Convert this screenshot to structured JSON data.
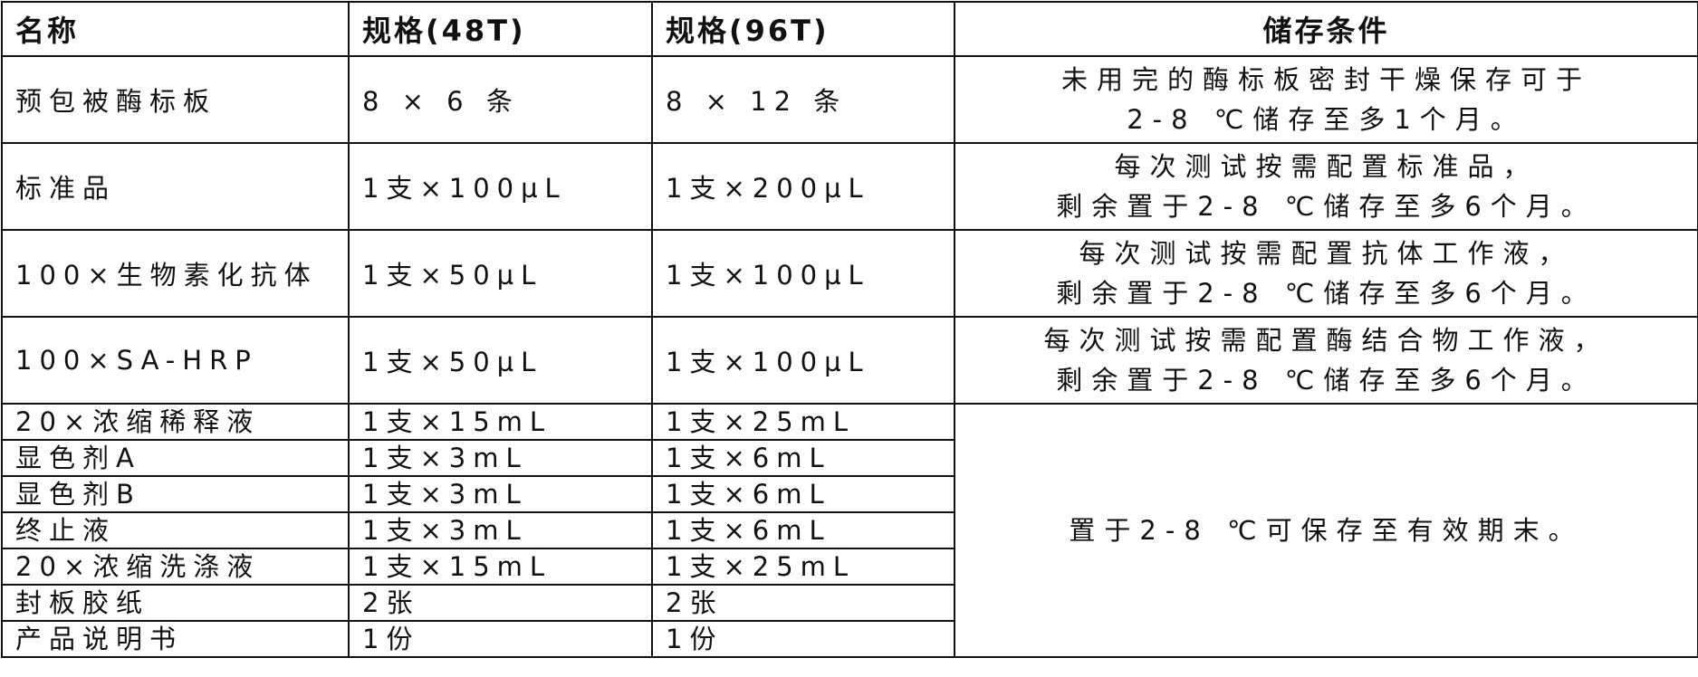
{
  "headers": [
    "名称",
    "规格(48T)",
    "规格(96T)",
    "储存条件"
  ],
  "rows": [
    {
      "name": "预包被酶标板",
      "spec48": "8 × 6 条",
      "spec96": "8 × 12 条",
      "storage": [
        "未用完的酶标板密封干燥保存可于",
        "2-8 ℃储存至多1个月。"
      ]
    },
    {
      "name": "标准品",
      "spec48": "1支×100µL",
      "spec96": "1支×200µL",
      "storage": [
        "每次测试按需配置标准品，",
        "剩余置于2-8 ℃储存至多6个月。"
      ]
    },
    {
      "name": "100×生物素化抗体",
      "spec48": "1支×50µL",
      "spec96": "1支×100µL",
      "storage": [
        "每次测试按需配置抗体工作液，",
        "剩余置于2-8 ℃储存至多6个月。"
      ]
    },
    {
      "name": "100×SA-HRP",
      "spec48": "1支×50µL",
      "spec96": "1支×100µL",
      "storage": [
        "每次测试按需配置酶结合物工作液，",
        "剩余置于2-8 ℃储存至多6个月。"
      ]
    },
    {
      "name": "20×浓缩稀释液",
      "spec48": "1支×15mL",
      "spec96": "1支×25mL"
    },
    {
      "name": "显色剂A",
      "spec48": "1支×3mL",
      "spec96": "1支×6mL"
    },
    {
      "name": "显色剂B",
      "spec48": "1支×3mL",
      "spec96": "1支×6mL"
    },
    {
      "name": "终止液",
      "spec48": "1支×3mL",
      "spec96": "1支×6mL"
    },
    {
      "name": "20×浓缩洗涤液",
      "spec48": "1支×15mL",
      "spec96": "1支×25mL"
    },
    {
      "name": "封板胶纸",
      "spec48": "2张",
      "spec96": "2张"
    },
    {
      "name": "产品说明书",
      "spec48": "1份",
      "spec96": "1份"
    }
  ],
  "shared_storage": "置于2-8 ℃可保存至有效期末。"
}
